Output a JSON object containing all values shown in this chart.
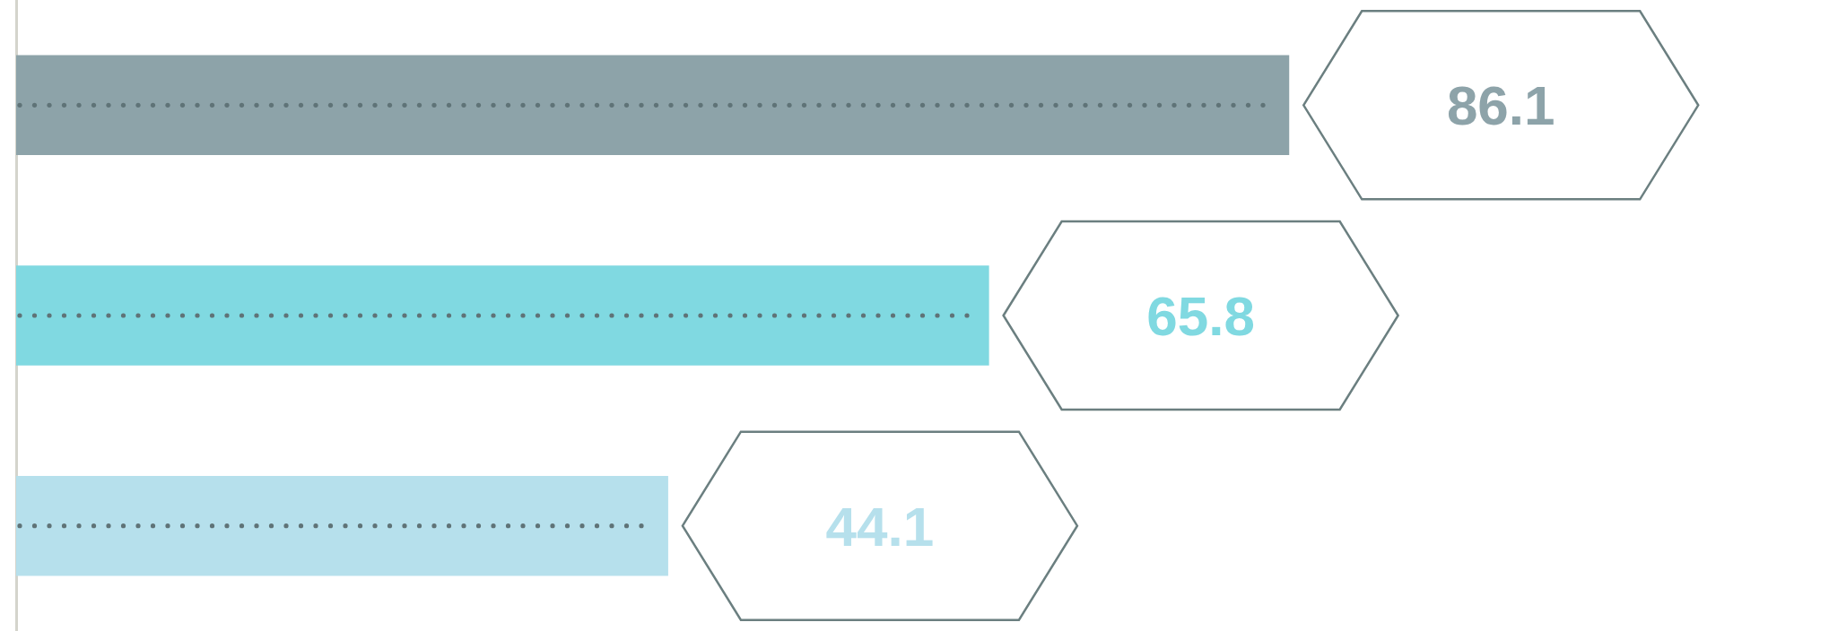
{
  "chart_data": {
    "type": "bar",
    "orientation": "horizontal",
    "categories": [
      null,
      null,
      null
    ],
    "values": [
      86.1,
      65.8,
      44.1
    ],
    "colors": [
      "#8da3a9",
      "#80d9e1",
      "#b6e0ec"
    ],
    "xlim": [
      0,
      122
    ],
    "data_labels": true,
    "tick_labels": false,
    "grid": false,
    "legend": false
  }
}
